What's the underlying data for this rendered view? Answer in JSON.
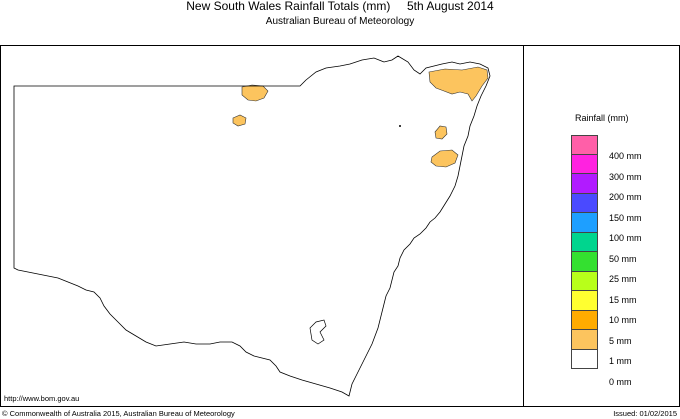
{
  "header": {
    "title": "New South Wales Rainfall Totals (mm)     5th August 2014",
    "subtitle": "Australian Bureau of Meteorology"
  },
  "footer": {
    "url": "http://www.bom.gov.au",
    "copyright": "© Commonwealth of Australia 2015, Australian Bureau of Meteorology",
    "issued": "Issued: 01/02/2015"
  },
  "legend": {
    "title": "Rainfall (mm)",
    "items": [
      {
        "label": "400 mm",
        "color": "#ff5fa8"
      },
      {
        "label": "300 mm",
        "color": "#ff22e0"
      },
      {
        "label": "200 mm",
        "color": "#b11bff"
      },
      {
        "label": "150 mm",
        "color": "#4a4aff"
      },
      {
        "label": "100 mm",
        "color": "#1e9fff"
      },
      {
        "label": "50 mm",
        "color": "#00d58e"
      },
      {
        "label": "25 mm",
        "color": "#34e030"
      },
      {
        "label": "15 mm",
        "color": "#b8ff1a"
      },
      {
        "label": "10 mm",
        "color": "#ffff30"
      },
      {
        "label": "5 mm",
        "color": "#ffab00"
      },
      {
        "label": "1 mm",
        "color": "#fcc45e"
      },
      {
        "label": "0 mm",
        "color": "#ffffff"
      }
    ]
  }
}
